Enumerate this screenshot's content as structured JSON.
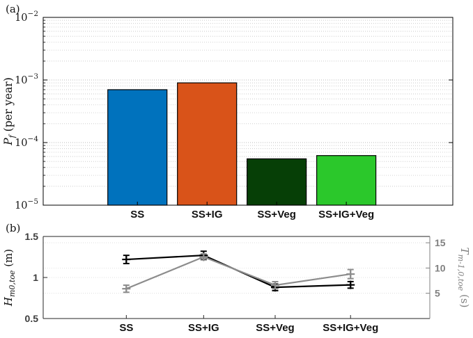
{
  "figure": {
    "panel_a_label": "(a)",
    "panel_b_label": "(b)"
  },
  "chart_data": [
    {
      "type": "bar",
      "panel": "a",
      "categories": [
        "SS",
        "SS+IG",
        "SS+Veg",
        "SS+IG+Veg"
      ],
      "values": [
        0.0007,
        0.0009,
        5.5e-05,
        6.2e-05
      ],
      "bar_colors": [
        "#0072BD",
        "#D95319",
        "#063F06",
        "#2BC82B"
      ],
      "bar_edge_color": "#000000",
      "ylabel": {
        "main": "P",
        "sub": "f",
        "rest": " (per year)"
      },
      "yscale": "log",
      "ylim": [
        1e-05,
        0.01
      ],
      "ytick_exponents": [
        -5,
        -4,
        -3,
        -2
      ],
      "grid": "dotted-horizontal-log-minor-and-major",
      "grid_color": "#b9b9b9"
    },
    {
      "type": "line",
      "panel": "b",
      "categories": [
        "SS",
        "SS+IG",
        "SS+Veg",
        "SS+IG+Veg"
      ],
      "series": [
        {
          "name": "Hm0,toe",
          "axis": "left",
          "color": "#000000",
          "marker": "plus-errorbar",
          "values": [
            1.22,
            1.27,
            0.88,
            0.91
          ],
          "errors": [
            0.05,
            0.05,
            0.04,
            0.04
          ]
        },
        {
          "name": "Tm-1,0,toe",
          "axis": "right",
          "color": "#8C8C8C",
          "marker": "plus-errorbar",
          "values": [
            5.9,
            12.2,
            6.6,
            8.8
          ],
          "errors": [
            0.7,
            0.6,
            0.7,
            0.9
          ]
        }
      ],
      "ylabel_left": {
        "main": "H",
        "sub": "m0,toe",
        "rest": " (m)"
      },
      "ylabel_right": {
        "main": "T",
        "sub": "m-1,0,toe",
        "rest": " (s)"
      },
      "ylim_left": [
        0.5,
        1.5
      ],
      "yticks_left": [
        0.5,
        1,
        1.5
      ],
      "ylim_right": [
        0,
        16.25
      ],
      "yticks_right": [
        5,
        10,
        15
      ],
      "right_axis_color": "#808080",
      "left_axis_color": "#262626",
      "grid_color": "#d9d9d9"
    }
  ]
}
